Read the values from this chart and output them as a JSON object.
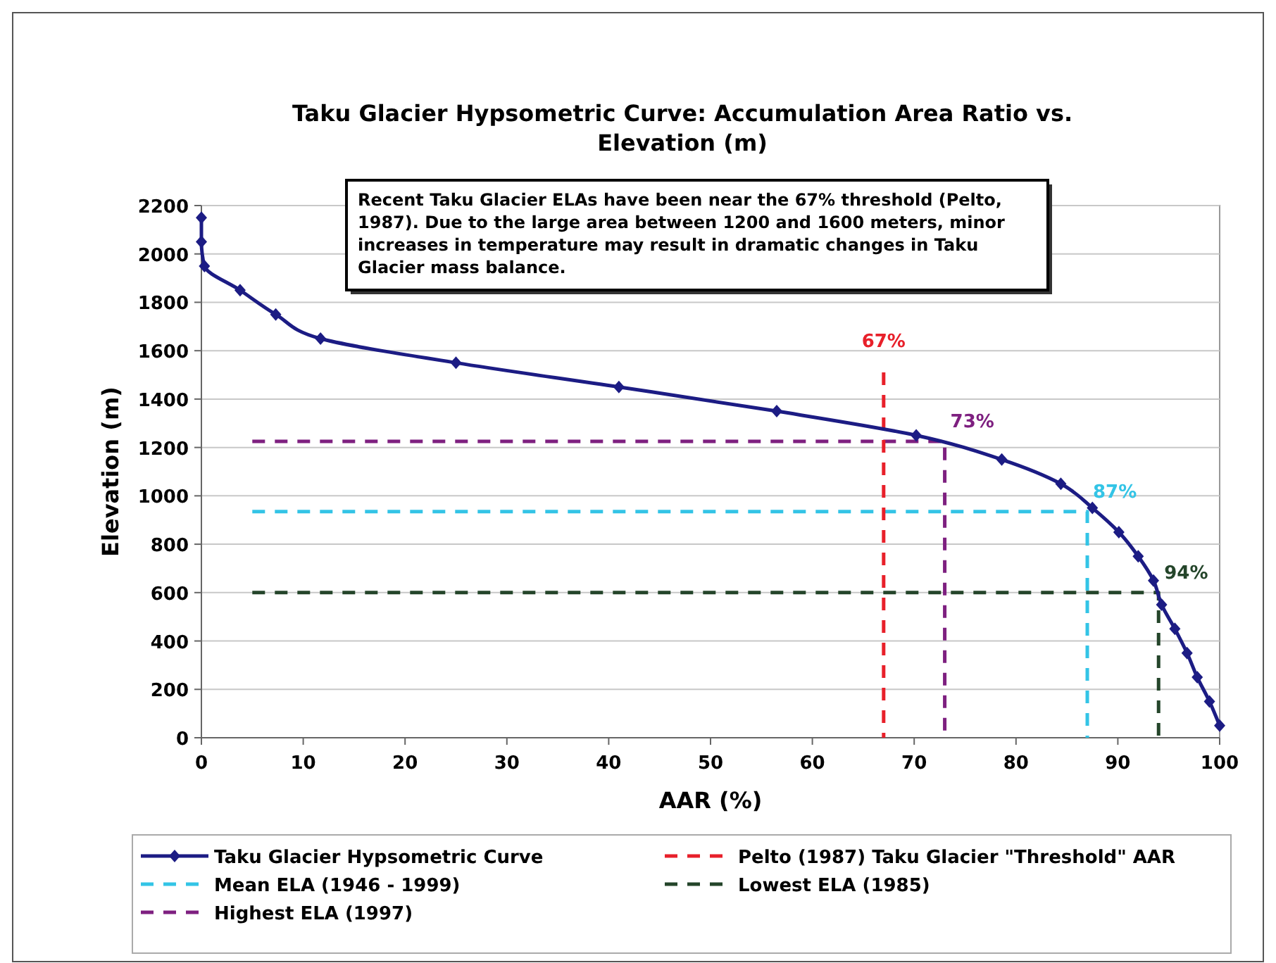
{
  "chart_data": {
    "type": "line",
    "title": "Taku Glacier Hypsometric Curve:  Accumulation Area Ratio vs. Elevation (m)",
    "xlabel": "AAR (%)",
    "ylabel": "Elevation (m)",
    "xlim": [
      0,
      100
    ],
    "xticks": [
      0,
      10,
      20,
      30,
      40,
      50,
      60,
      70,
      80,
      90,
      100
    ],
    "ylim": [
      0,
      2200
    ],
    "yticks": [
      0,
      200,
      400,
      600,
      800,
      1000,
      1200,
      1400,
      1600,
      1800,
      2000,
      2200
    ],
    "grid": "y",
    "legend": "bottom",
    "series": [
      {
        "name": "Taku Glacier Hypsometric Curve",
        "color": "#1c1c84",
        "marker": "diamond",
        "line_style": "solid",
        "x": [
          0,
          0,
          0.3,
          3.8,
          7.3,
          11.7,
          25,
          41,
          56.5,
          70.2,
          78.6,
          84.4,
          87.5,
          90.1,
          92,
          93.5,
          94.3,
          95.6,
          96.8,
          97.8,
          99,
          100
        ],
        "values": [
          2150,
          2050,
          1950,
          1850,
          1750,
          1650,
          1550,
          1450,
          1350,
          1250,
          1150,
          1050,
          950,
          850,
          750,
          650,
          550,
          450,
          350,
          250,
          150,
          50
        ]
      },
      {
        "name": "Pelto (1987) Taku Glacier \"Threshold\" AAR",
        "color": "#e8202a",
        "marker": "none",
        "line_style": "dashed",
        "x": [
          67,
          67
        ],
        "values": [
          1510,
          0
        ]
      },
      {
        "name": "Mean ELA (1946 - 1999)",
        "color": "#33c4e6",
        "marker": "none",
        "line_style": "dashed",
        "x": [
          5,
          87,
          87
        ],
        "values": [
          935,
          935,
          0
        ]
      },
      {
        "name": "Lowest ELA (1985)",
        "color": "#24452a",
        "marker": "none",
        "line_style": "dashed",
        "x": [
          5,
          94,
          94
        ],
        "values": [
          600,
          600,
          0
        ]
      },
      {
        "name": "Highest ELA (1997)",
        "color": "#7e2080",
        "marker": "none",
        "line_style": "dashed",
        "x": [
          5,
          73,
          73
        ],
        "values": [
          1225,
          1225,
          0
        ]
      }
    ],
    "annotations": [
      "Recent Taku Glacier ELAs have been near the 67% threshold (Pelto, 1987).  Due to the large area between 1200 and 1600 meters, minor increases in temperature may result in dramatic changes in Taku Glacier mass balance.",
      {
        "text": "67%",
        "x": 67,
        "y": 1510
      },
      {
        "text": "73%",
        "x": 73,
        "y": 1225
      },
      {
        "text": "87%",
        "x": 87,
        "y": 935
      },
      {
        "text": "94%",
        "x": 94,
        "y": 600
      }
    ]
  }
}
